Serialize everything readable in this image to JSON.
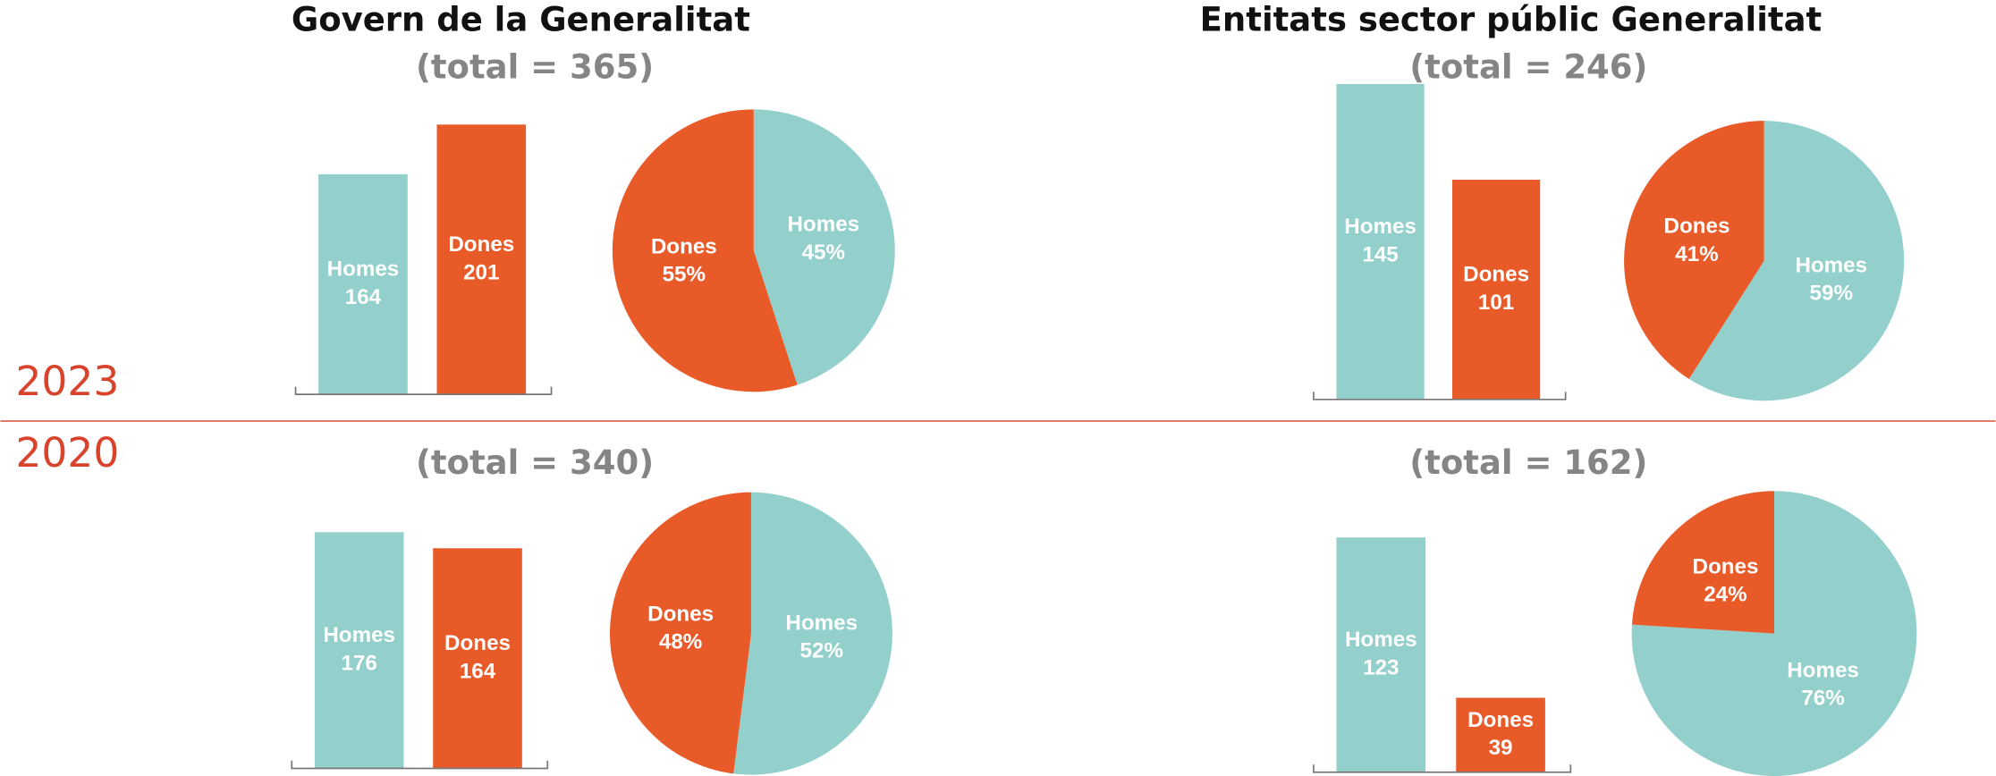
{
  "chart_data": [
    {
      "type": "bar",
      "title": "Govern de la Generalitat",
      "subtitle": "(total = 365)",
      "annotation": "2023",
      "categories": [
        "Homes",
        "Dones"
      ],
      "values": [
        164,
        201
      ],
      "colors": [
        "#93cfcb",
        "#e95a29"
      ]
    },
    {
      "type": "pie",
      "categories": [
        "Homes",
        "Dones"
      ],
      "values": [
        45,
        55
      ],
      "value_labels": [
        "45%",
        "55%"
      ],
      "colors": [
        "#93cfcb",
        "#e95a29"
      ]
    },
    {
      "type": "bar",
      "title": "Entitats sector públic Generalitat",
      "subtitle": "(total = 246)",
      "categories": [
        "Homes",
        "Dones"
      ],
      "values": [
        145,
        101
      ],
      "colors": [
        "#93cfcb",
        "#e95a29"
      ]
    },
    {
      "type": "pie",
      "categories": [
        "Homes",
        "Dones"
      ],
      "values": [
        59,
        41
      ],
      "value_labels": [
        "59%",
        "41%"
      ],
      "colors": [
        "#93cfcb",
        "#e95a29"
      ]
    },
    {
      "type": "bar",
      "subtitle": "(total = 340)",
      "annotation": "2020",
      "categories": [
        "Homes",
        "Dones"
      ],
      "values": [
        176,
        164
      ],
      "colors": [
        "#93cfcb",
        "#e95a29"
      ]
    },
    {
      "type": "pie",
      "categories": [
        "Homes",
        "Dones"
      ],
      "values": [
        52,
        48
      ],
      "value_labels": [
        "52%",
        "48%"
      ],
      "colors": [
        "#93cfcb",
        "#e95a29"
      ]
    },
    {
      "type": "bar",
      "subtitle": "(total = 162)",
      "categories": [
        "Homes",
        "Dones"
      ],
      "values": [
        123,
        39
      ],
      "colors": [
        "#93cfcb",
        "#e95a29"
      ]
    },
    {
      "type": "pie",
      "categories": [
        "Homes",
        "Dones"
      ],
      "values": [
        76,
        24
      ],
      "value_labels": [
        "76%",
        "24%"
      ],
      "colors": [
        "#93cfcb",
        "#e95a29"
      ]
    }
  ]
}
